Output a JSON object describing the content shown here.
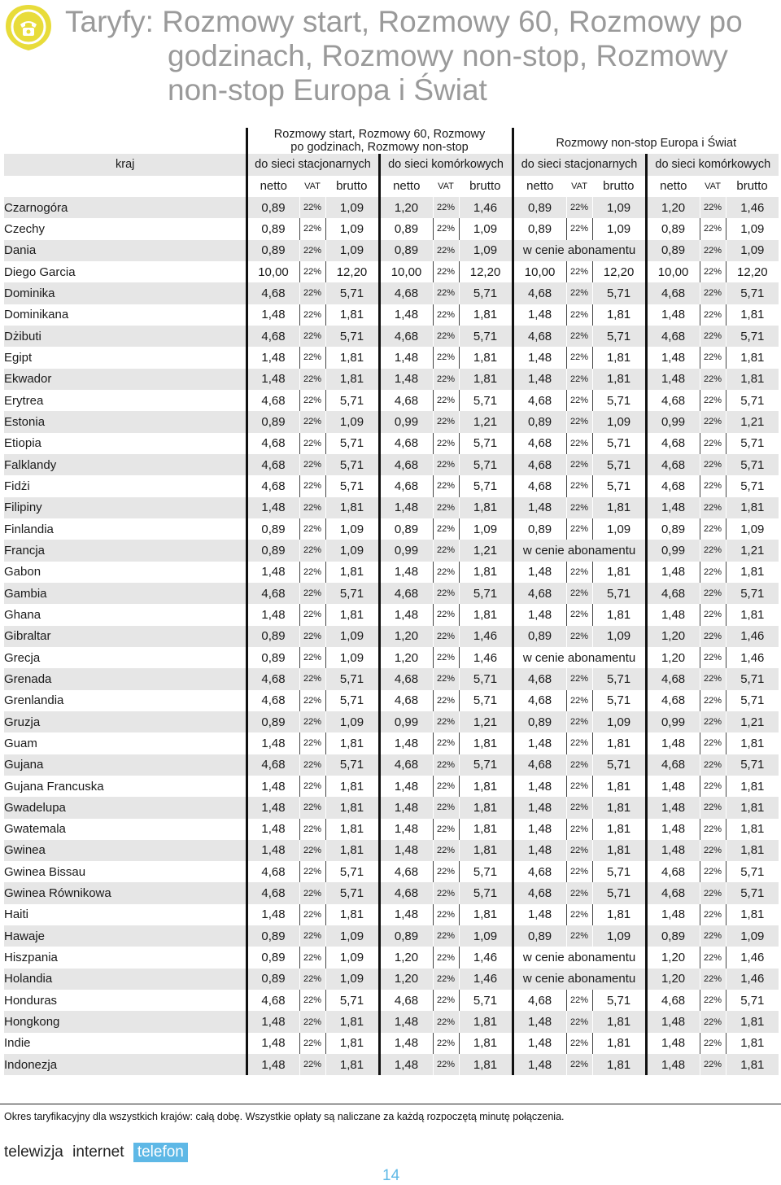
{
  "title": {
    "line1": "Taryfy: Rozmowy start, Rozmowy 60, Rozmowy po",
    "line2": "godzinach, Rozmowy non-stop, Rozmowy",
    "line3": "non-stop Europa i Świat"
  },
  "table": {
    "group_left": [
      "Rozmowy start, Rozmowy 60, Rozmowy",
      "po godzinach, Rozmowy non-stop"
    ],
    "group_right": "Rozmowy non-stop Europa i Świat",
    "country_header": "kraj",
    "sub_headers": [
      "do sieci stacjonarnych",
      "do sieci komórkowych",
      "do sieci stacjonarnych",
      "do sieci komórkowych"
    ],
    "col_headers": [
      "netto",
      "VAT",
      "brutto"
    ],
    "included_text": "w cenie abonamentu",
    "rows": [
      [
        "Czarnogóra",
        "0,89",
        "1,09",
        "1,20",
        "1,46",
        "0,89",
        "1,09",
        "1,20",
        "1,46"
      ],
      [
        "Czechy",
        "0,89",
        "1,09",
        "0,89",
        "1,09",
        "0,89",
        "1,09",
        "0,89",
        "1,09"
      ],
      [
        "Dania",
        "0,89",
        "1,09",
        "0,89",
        "1,09",
        "INC",
        "INC",
        "0,89",
        "1,09"
      ],
      [
        "Diego Garcia",
        "10,00",
        "12,20",
        "10,00",
        "12,20",
        "10,00",
        "12,20",
        "10,00",
        "12,20"
      ],
      [
        "Dominika",
        "4,68",
        "5,71",
        "4,68",
        "5,71",
        "4,68",
        "5,71",
        "4,68",
        "5,71"
      ],
      [
        "Dominikana",
        "1,48",
        "1,81",
        "1,48",
        "1,81",
        "1,48",
        "1,81",
        "1,48",
        "1,81"
      ],
      [
        "Dżibuti",
        "4,68",
        "5,71",
        "4,68",
        "5,71",
        "4,68",
        "5,71",
        "4,68",
        "5,71"
      ],
      [
        "Egipt",
        "1,48",
        "1,81",
        "1,48",
        "1,81",
        "1,48",
        "1,81",
        "1,48",
        "1,81"
      ],
      [
        "Ekwador",
        "1,48",
        "1,81",
        "1,48",
        "1,81",
        "1,48",
        "1,81",
        "1,48",
        "1,81"
      ],
      [
        "Erytrea",
        "4,68",
        "5,71",
        "4,68",
        "5,71",
        "4,68",
        "5,71",
        "4,68",
        "5,71"
      ],
      [
        "Estonia",
        "0,89",
        "1,09",
        "0,99",
        "1,21",
        "0,89",
        "1,09",
        "0,99",
        "1,21"
      ],
      [
        "Etiopia",
        "4,68",
        "5,71",
        "4,68",
        "5,71",
        "4,68",
        "5,71",
        "4,68",
        "5,71"
      ],
      [
        "Falklandy",
        "4,68",
        "5,71",
        "4,68",
        "5,71",
        "4,68",
        "5,71",
        "4,68",
        "5,71"
      ],
      [
        "Fidżi",
        "4,68",
        "5,71",
        "4,68",
        "5,71",
        "4,68",
        "5,71",
        "4,68",
        "5,71"
      ],
      [
        "Filipiny",
        "1,48",
        "1,81",
        "1,48",
        "1,81",
        "1,48",
        "1,81",
        "1,48",
        "1,81"
      ],
      [
        "Finlandia",
        "0,89",
        "1,09",
        "0,89",
        "1,09",
        "0,89",
        "1,09",
        "0,89",
        "1,09"
      ],
      [
        "Francja",
        "0,89",
        "1,09",
        "0,99",
        "1,21",
        "INC",
        "INC",
        "0,99",
        "1,21"
      ],
      [
        "Gabon",
        "1,48",
        "1,81",
        "1,48",
        "1,81",
        "1,48",
        "1,81",
        "1,48",
        "1,81"
      ],
      [
        "Gambia",
        "4,68",
        "5,71",
        "4,68",
        "5,71",
        "4,68",
        "5,71",
        "4,68",
        "5,71"
      ],
      [
        "Ghana",
        "1,48",
        "1,81",
        "1,48",
        "1,81",
        "1,48",
        "1,81",
        "1,48",
        "1,81"
      ],
      [
        "Gibraltar",
        "0,89",
        "1,09",
        "1,20",
        "1,46",
        "0,89",
        "1,09",
        "1,20",
        "1,46"
      ],
      [
        "Grecja",
        "0,89",
        "1,09",
        "1,20",
        "1,46",
        "INC",
        "INC",
        "1,20",
        "1,46"
      ],
      [
        "Grenada",
        "4,68",
        "5,71",
        "4,68",
        "5,71",
        "4,68",
        "5,71",
        "4,68",
        "5,71"
      ],
      [
        "Grenlandia",
        "4,68",
        "5,71",
        "4,68",
        "5,71",
        "4,68",
        "5,71",
        "4,68",
        "5,71"
      ],
      [
        "Gruzja",
        "0,89",
        "1,09",
        "0,99",
        "1,21",
        "0,89",
        "1,09",
        "0,99",
        "1,21"
      ],
      [
        "Guam",
        "1,48",
        "1,81",
        "1,48",
        "1,81",
        "1,48",
        "1,81",
        "1,48",
        "1,81"
      ],
      [
        "Gujana",
        "4,68",
        "5,71",
        "4,68",
        "5,71",
        "4,68",
        "5,71",
        "4,68",
        "5,71"
      ],
      [
        "Gujana Francuska",
        "1,48",
        "1,81",
        "1,48",
        "1,81",
        "1,48",
        "1,81",
        "1,48",
        "1,81"
      ],
      [
        "Gwadelupa",
        "1,48",
        "1,81",
        "1,48",
        "1,81",
        "1,48",
        "1,81",
        "1,48",
        "1,81"
      ],
      [
        "Gwatemala",
        "1,48",
        "1,81",
        "1,48",
        "1,81",
        "1,48",
        "1,81",
        "1,48",
        "1,81"
      ],
      [
        "Gwinea",
        "1,48",
        "1,81",
        "1,48",
        "1,81",
        "1,48",
        "1,81",
        "1,48",
        "1,81"
      ],
      [
        "Gwinea Bissau",
        "4,68",
        "5,71",
        "4,68",
        "5,71",
        "4,68",
        "5,71",
        "4,68",
        "5,71"
      ],
      [
        "Gwinea Równikowa",
        "4,68",
        "5,71",
        "4,68",
        "5,71",
        "4,68",
        "5,71",
        "4,68",
        "5,71"
      ],
      [
        "Haiti",
        "1,48",
        "1,81",
        "1,48",
        "1,81",
        "1,48",
        "1,81",
        "1,48",
        "1,81"
      ],
      [
        "Hawaje",
        "0,89",
        "1,09",
        "0,89",
        "1,09",
        "0,89",
        "1,09",
        "0,89",
        "1,09"
      ],
      [
        "Hiszpania",
        "0,89",
        "1,09",
        "1,20",
        "1,46",
        "INC",
        "INC",
        "1,20",
        "1,46"
      ],
      [
        "Holandia",
        "0,89",
        "1,09",
        "1,20",
        "1,46",
        "INC",
        "INC",
        "1,20",
        "1,46"
      ],
      [
        "Honduras",
        "4,68",
        "5,71",
        "4,68",
        "5,71",
        "4,68",
        "5,71",
        "4,68",
        "5,71"
      ],
      [
        "Hongkong",
        "1,48",
        "1,81",
        "1,48",
        "1,81",
        "1,48",
        "1,81",
        "1,48",
        "1,81"
      ],
      [
        "Indie",
        "1,48",
        "1,81",
        "1,48",
        "1,81",
        "1,48",
        "1,81",
        "1,48",
        "1,81"
      ],
      [
        "Indonezja",
        "1,48",
        "1,81",
        "1,48",
        "1,81",
        "1,48",
        "1,81",
        "1,48",
        "1,81"
      ]
    ],
    "vat": "22%"
  },
  "footnote": "Okres taryfikacyjny dla wszystkich krajów: całą dobę. Wszystkie opłaty są naliczane za każdą rozpoczętą minutę połączenia.",
  "brand": {
    "tv": "telewizja",
    "net": "internet",
    "phone": "telefon"
  },
  "page_number": "14",
  "colors": {
    "accent_yellow": "#e8dc3a",
    "accent_blue": "#5eb8e6",
    "shade": "#e6e6e6"
  }
}
